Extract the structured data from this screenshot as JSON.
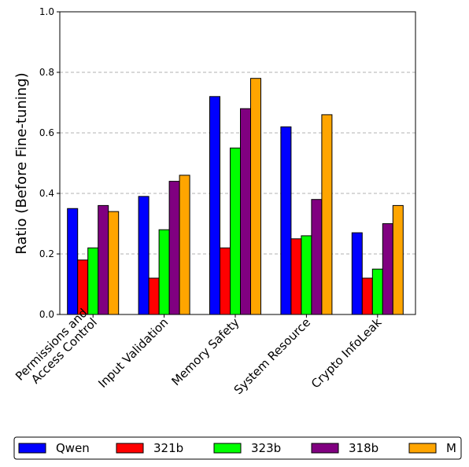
{
  "chart_data": {
    "type": "bar",
    "title": "",
    "xlabel": "",
    "ylabel": "Ratio (Before Fine-tuning)",
    "ylim": [
      0,
      1.0
    ],
    "yticks": [
      "0.0",
      "0.2",
      "0.4",
      "0.6",
      "0.8",
      "1.0"
    ],
    "grid": "y-dashed",
    "legend_position": "bottom",
    "categories": [
      [
        "Permissions and",
        "Access Control"
      ],
      [
        "Input Validation"
      ],
      [
        "Memory Safety"
      ],
      [
        "System Resource"
      ],
      [
        "Crypto InfoLeak"
      ]
    ],
    "series": [
      {
        "name": "Qwen",
        "color": "#0000ff",
        "values": [
          0.35,
          0.39,
          0.72,
          0.62,
          0.27
        ]
      },
      {
        "name": "321b",
        "color": "#ff0000",
        "values": [
          0.18,
          0.12,
          0.22,
          0.25,
          0.12
        ]
      },
      {
        "name": "323b",
        "color": "#00ff00",
        "values": [
          0.22,
          0.28,
          0.55,
          0.26,
          0.15
        ]
      },
      {
        "name": "318b",
        "color": "#800080",
        "values": [
          0.36,
          0.44,
          0.68,
          0.38,
          0.3
        ]
      },
      {
        "name": "M",
        "color": "#ffa500",
        "values": [
          0.34,
          0.46,
          0.78,
          0.66,
          0.36
        ]
      }
    ]
  }
}
